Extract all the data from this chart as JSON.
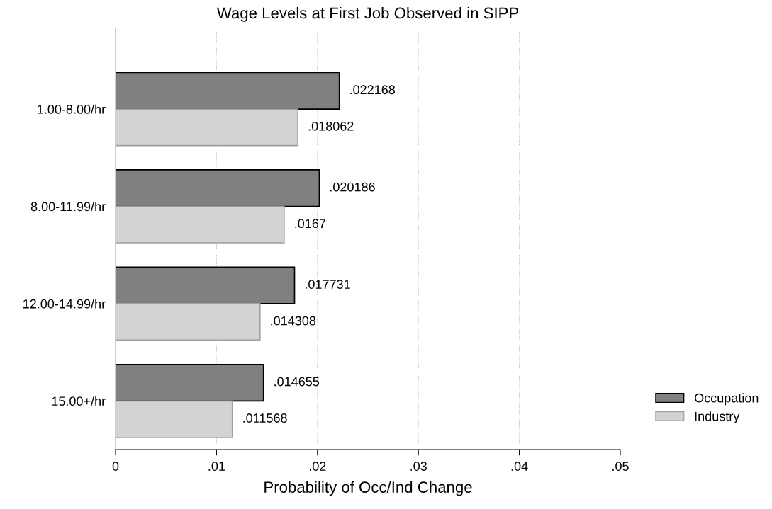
{
  "chart_data": {
    "type": "bar",
    "orientation": "horizontal",
    "title": "Wage Levels at First Job Observed in SIPP",
    "xlabel": "Probability of Occ/Ind Change",
    "categories": [
      "1.00-8.00/hr",
      "8.00-11.99/hr",
      "12.00-14.99/hr",
      "15.00+/hr"
    ],
    "series": [
      {
        "name": "Occupation",
        "color": "#808080",
        "values": [
          0.022168,
          0.020186,
          0.017731,
          0.014655
        ],
        "value_labels": [
          ".022168",
          ".020186",
          ".017731",
          ".014655"
        ]
      },
      {
        "name": "Industry",
        "color": "#d3d3d3",
        "values": [
          0.018062,
          0.0167,
          0.014308,
          0.011568
        ],
        "value_labels": [
          ".018062",
          ".0167",
          ".014308",
          ".011568"
        ]
      }
    ],
    "xlim": [
      0,
      0.05
    ],
    "xticks": [
      0,
      {
        "value": 0.01,
        "label": ".01"
      },
      {
        "value": 0.02,
        "label": ".02"
      },
      {
        "value": 0.03,
        "label": ".03"
      },
      {
        "value": 0.04,
        "label": ".04"
      },
      {
        "value": 0.05,
        "label": ".05"
      }
    ],
    "grid": "x",
    "legend": "right"
  }
}
